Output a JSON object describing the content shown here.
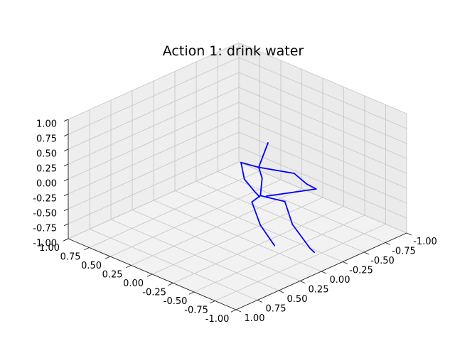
{
  "chart_data": {
    "type": "3d-line",
    "title": "Action 1: drink water",
    "xlabel": "",
    "ylabel": "",
    "zlabel": "",
    "xlim": [
      -1.0,
      1.0
    ],
    "ylim": [
      -1.0,
      1.0
    ],
    "zlim": [
      -1.0,
      1.0
    ],
    "x_ticks": [
      "-1.00",
      "-0.75",
      "-0.50",
      "-0.25",
      "0.00",
      "0.25",
      "0.50",
      "0.75",
      "1.00"
    ],
    "y_ticks": [
      "1.00",
      "0.75",
      "0.50",
      "0.25",
      "0.00",
      "-0.25",
      "-0.50",
      "-0.75",
      "-1.00"
    ],
    "z_ticks": [
      "-1.00",
      "-0.75",
      "-0.50",
      "-0.25",
      "0.00",
      "0.25",
      "0.50",
      "0.75",
      "1.00"
    ],
    "grid": true,
    "colors": {
      "skeleton": "#0000ff",
      "grid": "#c8c8c8",
      "pane": "#f2f2f2",
      "axis": "#222222"
    },
    "series": [
      {
        "values": [
          {
            "from": [
              -0.09,
              -0.27,
              0.44
            ],
            "to": [
              -0.05,
              -0.2,
              0.05
            ]
          },
          {
            "from": [
              -0.05,
              -0.2,
              0.05
            ],
            "to": [
              -0.04,
              -0.25,
              -0.17
            ]
          },
          {
            "from": [
              -0.04,
              -0.25,
              -0.17
            ],
            "to": [
              -0.04,
              -0.23,
              -0.45
            ]
          },
          {
            "from": [
              -0.05,
              -0.2,
              0.05
            ],
            "to": [
              -0.35,
              -0.32,
              0.05
            ]
          },
          {
            "from": [
              -0.35,
              -0.32,
              0.05
            ],
            "to": [
              -0.46,
              -0.36,
              -0.09
            ]
          },
          {
            "from": [
              -0.46,
              -0.36,
              -0.09
            ],
            "to": [
              -0.47,
              -0.46,
              -0.23
            ]
          },
          {
            "from": [
              -0.47,
              -0.46,
              -0.23
            ],
            "to": [
              -0.14,
              -0.2,
              -0.38
            ]
          },
          {
            "from": [
              -0.05,
              -0.2,
              0.05
            ],
            "to": [
              0.1,
              -0.14,
              0.08
            ]
          },
          {
            "from": [
              0.1,
              -0.14,
              0.08
            ],
            "to": [
              0.04,
              -0.12,
              -0.15
            ]
          },
          {
            "from": [
              0.04,
              -0.12,
              -0.15
            ],
            "to": [
              -0.02,
              -0.18,
              -0.36
            ]
          },
          {
            "from": [
              -0.02,
              -0.18,
              -0.36
            ],
            "to": [
              -0.05,
              -0.21,
              -0.45
            ]
          },
          {
            "from": [
              -0.04,
              -0.23,
              -0.45
            ],
            "to": [
              -0.27,
              -0.29,
              -0.45
            ]
          },
          {
            "from": [
              -0.27,
              -0.29,
              -0.45
            ],
            "to": [
              -0.36,
              -0.29,
              -0.78
            ]
          },
          {
            "from": [
              -0.36,
              -0.29,
              -0.78
            ],
            "to": [
              -0.55,
              -0.31,
              -1.08
            ]
          },
          {
            "from": [
              -0.55,
              -0.31,
              -1.08
            ],
            "to": [
              -0.55,
              -0.36,
              -1.18
            ]
          },
          {
            "from": [
              -0.04,
              -0.23,
              -0.45
            ],
            "to": [
              -0.05,
              -0.12,
              -0.48
            ]
          },
          {
            "from": [
              -0.05,
              -0.12,
              -0.48
            ],
            "to": [
              -0.17,
              -0.1,
              -0.78
            ]
          },
          {
            "from": [
              -0.17,
              -0.1,
              -0.78
            ],
            "to": [
              -0.28,
              -0.16,
              -1.1
            ]
          }
        ]
      }
    ]
  }
}
